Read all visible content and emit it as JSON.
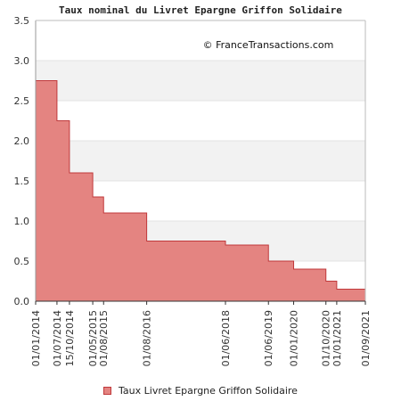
{
  "chart_data": {
    "type": "area",
    "step": true,
    "title": "Taux nominal du Livret Epargne Griffon Solidaire",
    "watermark": "© FranceTransactions.com",
    "xlabel": "",
    "ylabel": "",
    "ylim": [
      0,
      3.5
    ],
    "yticks": [
      "0.0",
      "0.5",
      "1.0",
      "1.5",
      "2.0",
      "2.5",
      "3.0",
      "3.5"
    ],
    "x": [
      "2014-01-01",
      "2014-07-01",
      "2014-10-15",
      "2015-05-01",
      "2015-08-01",
      "2016-08-01",
      "2018-06-01",
      "2019-06-01",
      "2020-01-01",
      "2020-10-01",
      "2021-01-01",
      "2021-09-01"
    ],
    "xtick_labels": [
      "01/01/2014",
      "01/07/2014",
      "15/10/2014",
      "01/05/2015",
      "01/08/2015",
      "01/08/2016",
      "01/06/2018",
      "01/06/2019",
      "01/01/2020",
      "01/10/2020",
      "01/01/2021",
      "01/09/2021"
    ],
    "series": [
      {
        "name": "Taux Livret Epargne Griffon Solidaire",
        "values": [
          2.75,
          2.25,
          1.6,
          1.3,
          1.1,
          0.75,
          0.7,
          0.5,
          0.4,
          0.25,
          0.15,
          0.15
        ]
      }
    ],
    "grid": true,
    "legend_position": "bottom-center",
    "colors": {
      "fill": "#e48481",
      "line": "#c0393b",
      "band": "#f2f2f2",
      "gridline": "#e3e3e3",
      "axis": "#333333"
    }
  }
}
